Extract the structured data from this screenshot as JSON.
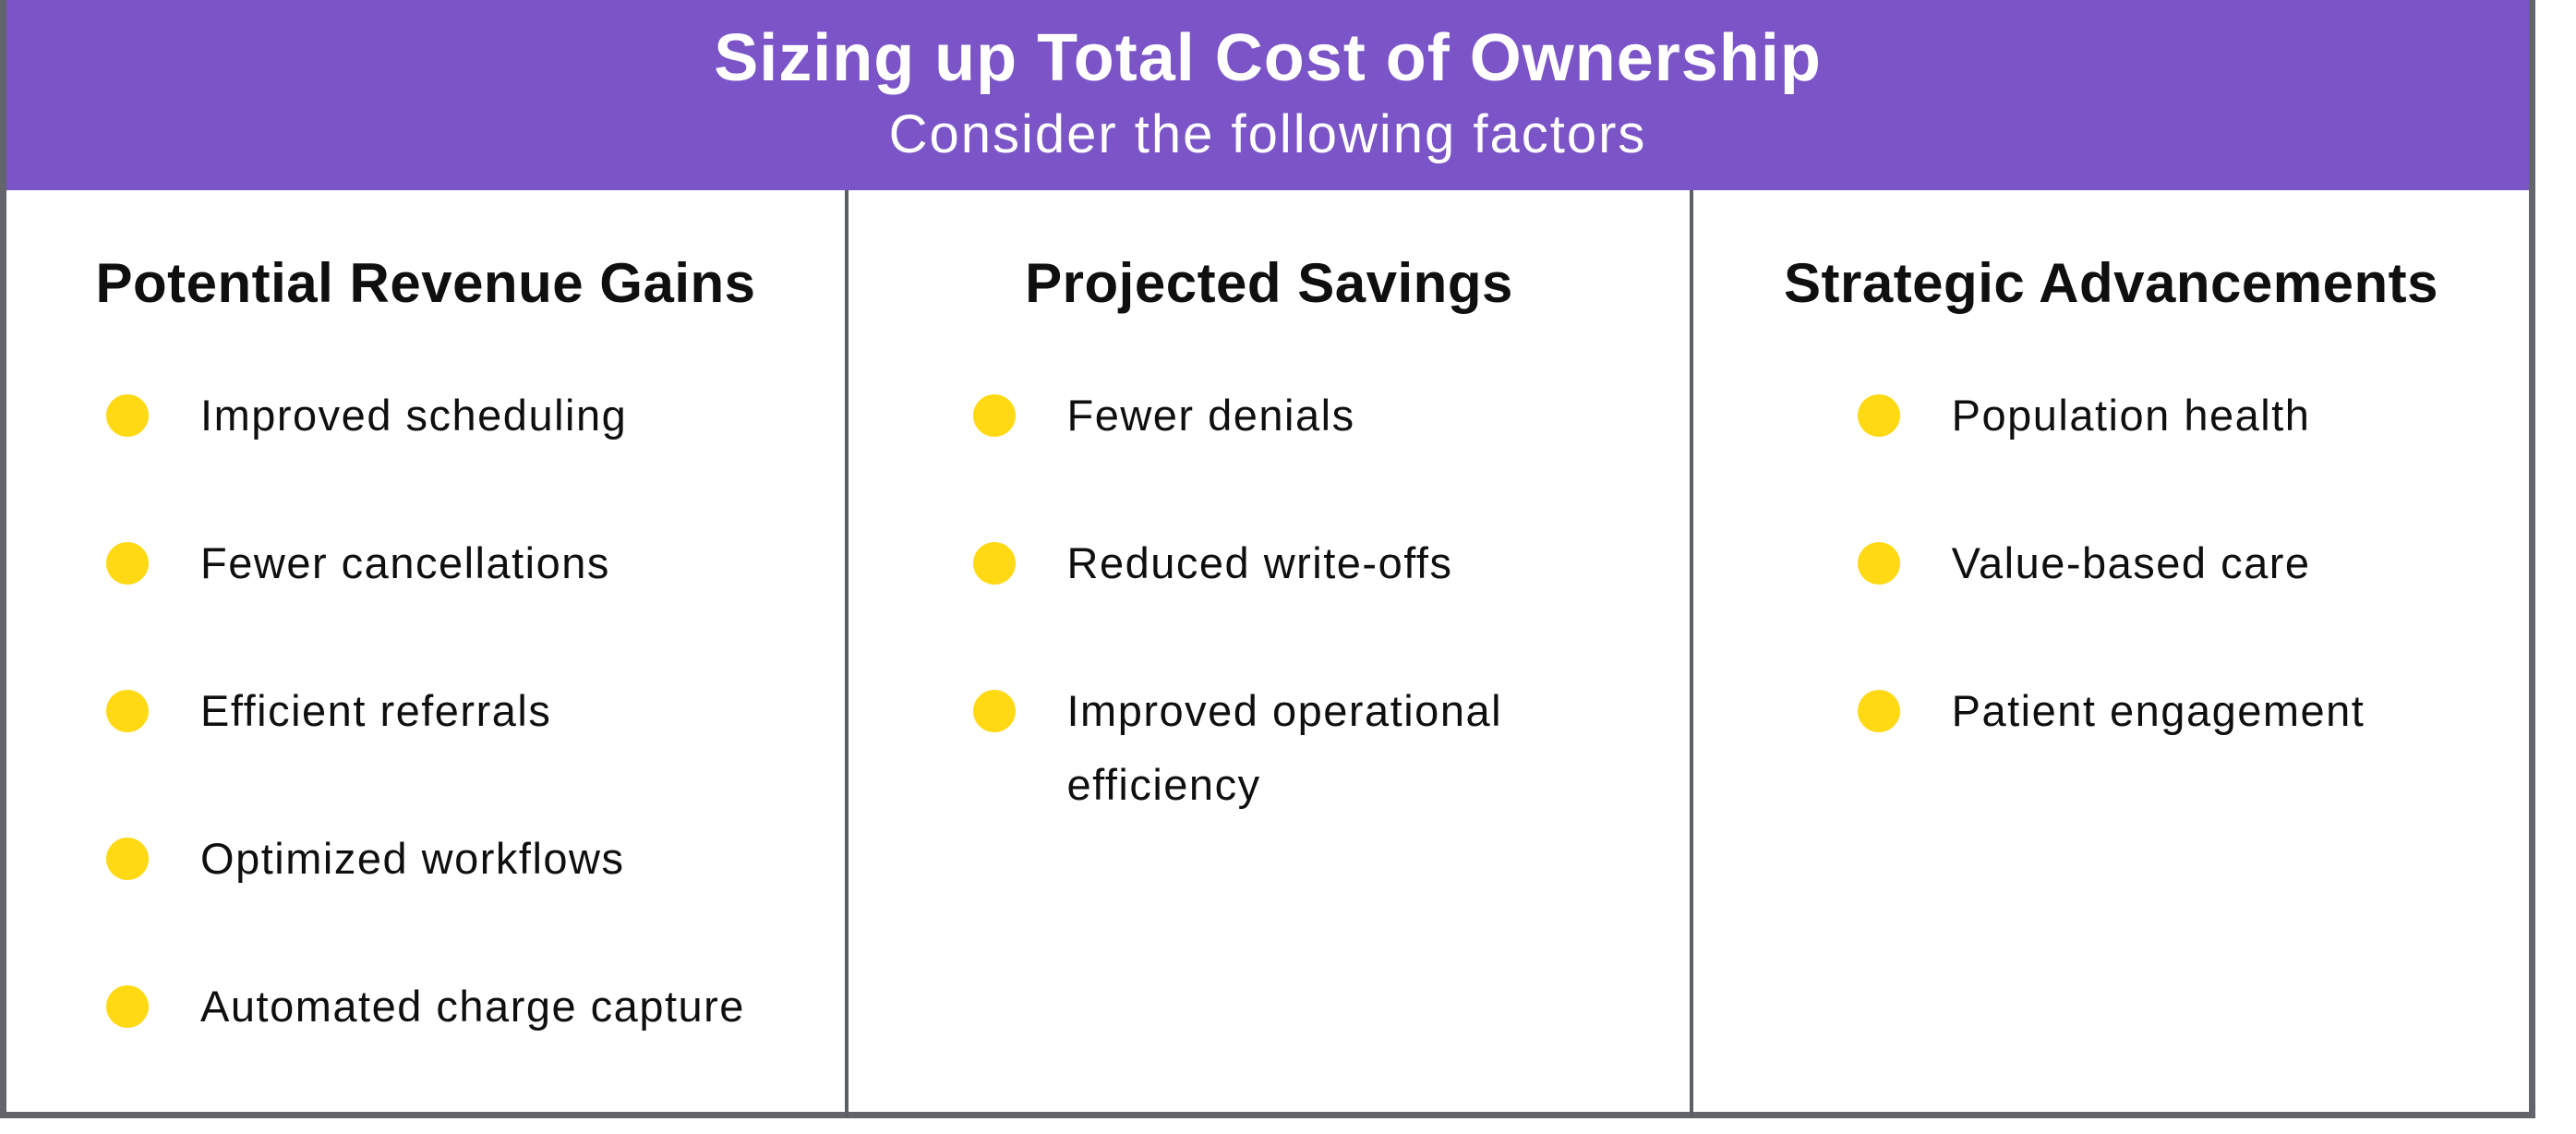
{
  "header": {
    "title": "Sizing up Total Cost of Ownership",
    "subtitle": "Consider the following factors",
    "bg_color": "#7b55c7",
    "text_color": "#ffffff"
  },
  "columns": [
    {
      "title": "Potential Revenue Gains",
      "items": [
        "Improved scheduling",
        "Fewer cancellations",
        "Efficient referrals",
        "Optimized workflows",
        "Automated charge capture"
      ]
    },
    {
      "title": "Projected Savings",
      "items": [
        "Fewer denials",
        "Reduced write-offs",
        "Improved operational efficiency"
      ]
    },
    {
      "title": "Strategic Advancements",
      "items": [
        "Population health",
        "Value-based care",
        "Patient engagement"
      ]
    }
  ],
  "colors": {
    "bullet": "#ffd914",
    "frame_border": "#62656b",
    "column_divider": "#5b5e64",
    "body_text": "#0f0f0f"
  }
}
